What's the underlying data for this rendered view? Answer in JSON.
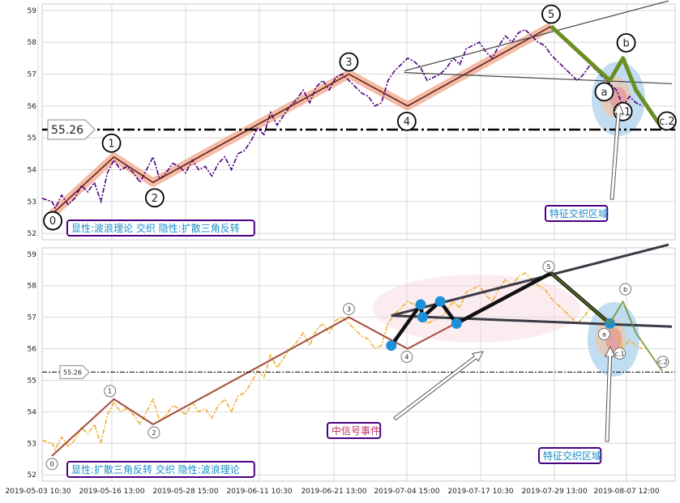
{
  "chart_data": [
    {
      "type": "line",
      "panel": "top",
      "ylim": [
        51.8,
        59.2
      ],
      "yticks": [
        52,
        53,
        54,
        55,
        56,
        57,
        58,
        59
      ],
      "grid": true,
      "reference_line": {
        "value": 55.26,
        "label": "55.26"
      },
      "price_series": {
        "color": "#4b0082",
        "style": "dash-dot",
        "x": [
          0.0,
          1.5,
          2.0,
          3.0,
          4.0,
          5.0,
          6.0,
          7.0,
          8.0,
          9.0,
          10.0,
          11.0,
          12.0,
          13.0,
          14.0,
          15.0,
          16.0,
          17.0,
          18.0,
          19.0,
          20.0,
          21.0,
          22.0,
          23.0,
          24.0,
          25.0,
          26.0,
          27.0,
          28.0,
          29.0,
          30.0,
          31.0,
          32.0,
          33.0,
          34.0,
          35.0,
          36.0,
          37.0,
          38.0,
          39.0,
          40.0,
          41.0,
          42.0,
          43.0,
          44.0,
          45.0,
          46.0,
          47.0,
          48.0,
          49.0,
          50.0,
          51.0,
          52.0,
          53.0,
          54.0,
          55.0,
          56.0,
          57.0,
          58.0,
          59.0,
          60.0,
          61.0,
          62.0,
          63.0,
          64.0,
          65.0,
          66.0,
          67.0,
          68.0,
          69.0,
          70.0,
          71.0,
          72.0,
          73.0,
          74.0,
          75.0,
          76.0,
          77.0,
          78.0,
          79.0,
          80.0,
          81.0,
          82.0,
          83.0,
          84.0,
          85.0,
          86.0,
          87.0,
          88.0,
          89.0,
          90.0,
          91.0,
          92.0
        ],
        "y": [
          53.1,
          53.0,
          52.8,
          53.2,
          52.9,
          53.1,
          53.5,
          53.3,
          53.6,
          53.0,
          53.9,
          54.3,
          54.0,
          54.1,
          53.9,
          53.6,
          54.0,
          54.4,
          53.7,
          53.9,
          54.2,
          54.1,
          53.9,
          54.3,
          54.0,
          54.1,
          53.8,
          54.2,
          54.4,
          54.0,
          54.5,
          54.6,
          54.9,
          55.3,
          55.1,
          55.8,
          55.4,
          55.7,
          56.0,
          56.2,
          56.5,
          56.1,
          56.6,
          56.8,
          56.5,
          56.9,
          57.0,
          56.8,
          56.6,
          56.4,
          56.3,
          56.0,
          56.1,
          56.8,
          57.1,
          57.3,
          57.5,
          57.4,
          57.2,
          56.8,
          56.9,
          57.0,
          57.2,
          57.5,
          57.3,
          57.8,
          57.9,
          58.0,
          57.7,
          57.5,
          57.9,
          58.2,
          58.0,
          58.3,
          58.4,
          58.2,
          58.0,
          57.9,
          57.6,
          57.4,
          57.2,
          57.0,
          56.8,
          57.0,
          57.3,
          57.1,
          56.9,
          56.7,
          56.5,
          56.0,
          56.3,
          56.1,
          56.0
        ]
      },
      "wave_path": [
        {
          "x": 1.5,
          "y": 52.6,
          "label": "0"
        },
        {
          "x": 11.0,
          "y": 54.4,
          "label": "1"
        },
        {
          "x": 17.0,
          "y": 53.6,
          "label": "2"
        },
        {
          "x": 47.0,
          "y": 57.0,
          "label": "3"
        },
        {
          "x": 56.0,
          "y": 56.0,
          "label": "4"
        },
        {
          "x": 78.0,
          "y": 58.5,
          "label": "5"
        }
      ],
      "correction_path": [
        {
          "x": 78.0,
          "y": 58.5
        },
        {
          "x": 87.0,
          "y": 56.8,
          "label": "a"
        },
        {
          "x": 89.0,
          "y": 57.5,
          "label": "b"
        },
        {
          "x": 91.0,
          "y": 56.5
        },
        {
          "x": 95.0,
          "y": 55.3,
          "label": "c.2"
        }
      ],
      "extra_labels": [
        {
          "x": 89.0,
          "y": 55.9,
          "label": "c.1"
        }
      ],
      "trend_lines": [
        {
          "x1": 55.5,
          "y1": 57.1,
          "x2": 96.0,
          "y2": 59.3
        },
        {
          "x1": 55.5,
          "y1": 57.05,
          "x2": 96.5,
          "y2": 56.7
        }
      ],
      "annotations": [
        {
          "text": "显性:波浪理论 交织 隐性:扩散三角反转",
          "position": "bottom-left"
        },
        {
          "text": "特征交织区域",
          "position": "bottom-right"
        }
      ]
    },
    {
      "type": "line",
      "panel": "bottom",
      "ylim": [
        51.8,
        59.2
      ],
      "yticks": [
        52,
        53,
        54,
        55,
        56,
        57,
        58,
        59
      ],
      "grid": true,
      "reference_line": {
        "value": 55.26,
        "label": "55.26"
      },
      "price_series": {
        "color": "#f0b030",
        "style": "dash-dot",
        "x": [
          0.0,
          1.5,
          2.0,
          3.0,
          4.0,
          5.0,
          6.0,
          7.0,
          8.0,
          9.0,
          10.0,
          11.0,
          12.0,
          13.0,
          14.0,
          15.0,
          16.0,
          17.0,
          18.0,
          19.0,
          20.0,
          21.0,
          22.0,
          23.0,
          24.0,
          25.0,
          26.0,
          27.0,
          28.0,
          29.0,
          30.0,
          31.0,
          32.0,
          33.0,
          34.0,
          35.0,
          36.0,
          37.0,
          38.0,
          39.0,
          40.0,
          41.0,
          42.0,
          43.0,
          44.0,
          45.0,
          46.0,
          47.0,
          48.0,
          49.0,
          50.0,
          51.0,
          52.0,
          53.0,
          54.0,
          55.0,
          56.0,
          57.0,
          58.0,
          59.0,
          60.0,
          61.0,
          62.0,
          63.0,
          64.0,
          65.0,
          66.0,
          67.0,
          68.0,
          69.0,
          70.0,
          71.0,
          72.0,
          73.0,
          74.0,
          75.0,
          76.0,
          77.0,
          78.0,
          79.0,
          80.0,
          81.0,
          82.0,
          83.0,
          84.0,
          85.0,
          86.0,
          87.0,
          88.0,
          89.0,
          90.0,
          91.0,
          92.0
        ],
        "y": [
          53.1,
          53.0,
          52.8,
          53.2,
          52.9,
          53.1,
          53.5,
          53.3,
          53.6,
          53.0,
          53.9,
          54.3,
          54.0,
          54.1,
          53.9,
          53.6,
          54.0,
          54.4,
          53.7,
          53.9,
          54.2,
          54.1,
          53.9,
          54.3,
          54.0,
          54.1,
          53.8,
          54.2,
          54.4,
          54.0,
          54.5,
          54.6,
          54.9,
          55.3,
          55.1,
          55.8,
          55.4,
          55.7,
          56.0,
          56.2,
          56.5,
          56.1,
          56.6,
          56.8,
          56.5,
          56.9,
          57.0,
          56.8,
          56.6,
          56.4,
          56.3,
          56.0,
          56.1,
          56.8,
          57.1,
          57.3,
          57.5,
          57.4,
          57.2,
          56.8,
          56.9,
          57.0,
          57.2,
          57.5,
          57.3,
          57.8,
          57.9,
          58.0,
          57.7,
          57.5,
          57.9,
          58.2,
          58.0,
          58.3,
          58.4,
          58.2,
          58.0,
          57.9,
          57.6,
          57.4,
          57.2,
          57.0,
          56.8,
          57.0,
          57.3,
          57.1,
          56.9,
          56.7,
          56.5,
          56.0,
          56.3,
          56.1,
          56.0
        ]
      },
      "wave_path": [
        {
          "x": 1.5,
          "y": 52.6,
          "label": "0"
        },
        {
          "x": 11.0,
          "y": 54.4,
          "label": "1"
        },
        {
          "x": 17.0,
          "y": 53.6,
          "label": "2"
        },
        {
          "x": 47.0,
          "y": 57.0,
          "label": "3"
        },
        {
          "x": 56.0,
          "y": 56.0,
          "label": "4"
        },
        {
          "x": 78.0,
          "y": 58.4,
          "label": "5"
        }
      ],
      "triangle_path": [
        {
          "x": 53.5,
          "y": 56.1
        },
        {
          "x": 58.0,
          "y": 57.4
        },
        {
          "x": 58.3,
          "y": 57.0
        },
        {
          "x": 61.0,
          "y": 57.5
        },
        {
          "x": 63.5,
          "y": 56.8
        },
        {
          "x": 78.0,
          "y": 58.4
        },
        {
          "x": 87.0,
          "y": 56.8
        }
      ],
      "correction_path": [
        {
          "x": 78.0,
          "y": 58.4
        },
        {
          "x": 87.0,
          "y": 56.8,
          "label": "a"
        },
        {
          "x": 89.0,
          "y": 57.5,
          "label": "b"
        },
        {
          "x": 91.0,
          "y": 56.5
        },
        {
          "x": 95.0,
          "y": 55.3,
          "label": "c.2"
        }
      ],
      "extra_labels": [
        {
          "x": 89.0,
          "y": 55.9,
          "label": "c.1"
        }
      ],
      "trend_lines": [
        {
          "x1": 53.5,
          "y1": 57.05,
          "x2": 96.0,
          "y2": 59.3
        },
        {
          "x1": 53.5,
          "y1": 57.05,
          "x2": 96.5,
          "y2": 56.7
        }
      ],
      "annotations": [
        {
          "text": "显性:扩散三角反转 交织 隐性:波浪理论",
          "position": "bottom-left"
        },
        {
          "text": "中信号事件",
          "position": "bottom-center"
        },
        {
          "text": "特征交织区域",
          "position": "bottom-right"
        }
      ]
    }
  ],
  "x_axis": {
    "tick_labels": [
      "2019-05-03 10:30",
      "2019-05-16 13:00",
      "2019-05-28 15:00",
      "2019-06-11 10:30",
      "2019-06-21 13:00",
      "2019-07-04 15:00",
      "2019-07-17 10:30",
      "2019-07-29 13:00",
      "2019-08-07 12:00"
    ]
  },
  "colors": {
    "wave_highlight": "#f0a080",
    "wave_line": "#5a1a1a",
    "correction_green": "#6b8e23",
    "annotation_text": "#1a8cc8",
    "annotation_border": "#4b0082",
    "event_text": "#c0306a",
    "marker_blue": "#1e90d8"
  }
}
